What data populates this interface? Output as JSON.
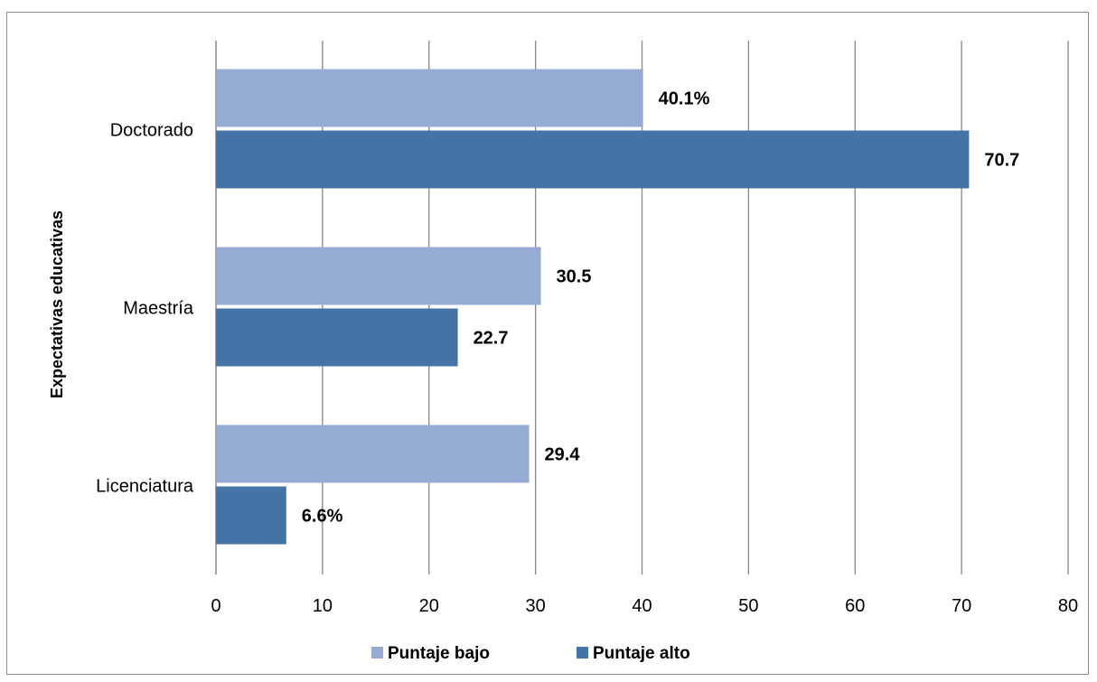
{
  "chart_data": {
    "type": "bar",
    "orientation": "horizontal",
    "categories": [
      "Doctorado",
      "Maestría",
      "Licenciatura"
    ],
    "series": [
      {
        "name": "Puntaje bajo",
        "color": "#95abd3",
        "values": [
          40.1,
          30.5,
          29.4
        ],
        "labels": [
          "40.1%",
          "30.5",
          "29.4"
        ]
      },
      {
        "name": "Puntaje alto",
        "color": "#4573a6",
        "values": [
          70.7,
          22.7,
          6.6
        ],
        "labels": [
          "70.7",
          "22.7",
          "6.6%"
        ]
      }
    ],
    "xlim": [
      0,
      80
    ],
    "x_ticks": [
      0,
      10,
      20,
      30,
      40,
      50,
      60,
      70,
      80
    ],
    "ylabel": "Expectativas educativas",
    "xlabel": "",
    "grid": "vertical",
    "legend": "bottom"
  }
}
